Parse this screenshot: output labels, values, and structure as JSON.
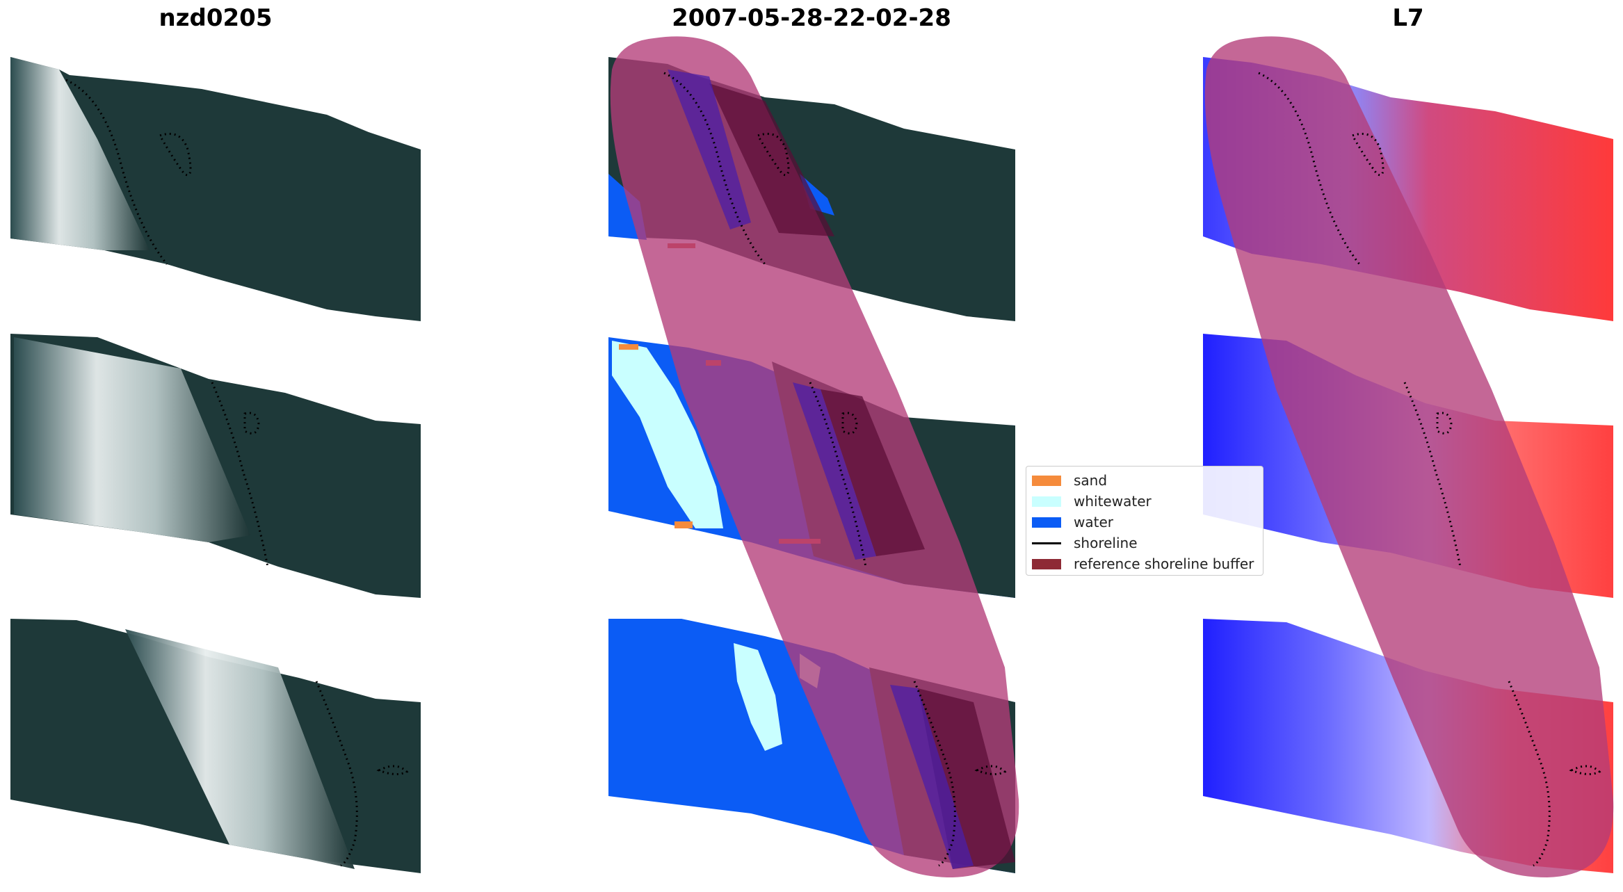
{
  "panels": [
    {
      "title": "nzd0205"
    },
    {
      "title": "2007-05-28-22-02-28"
    },
    {
      "title": "L7"
    }
  ],
  "legend": {
    "items": [
      {
        "label": "sand",
        "color": "#f58b3c",
        "kind": "patch"
      },
      {
        "label": "whitewater",
        "color": "#c9ffff",
        "kind": "patch"
      },
      {
        "label": "water",
        "color": "#0b5cf5",
        "kind": "patch"
      },
      {
        "label": "shoreline",
        "color": "#000000",
        "kind": "line"
      },
      {
        "label": "reference shoreline buffer",
        "color": "#8e2a35",
        "kind": "patch"
      }
    ]
  },
  "colors": {
    "rgb_land": "#1d3a3a",
    "rgb_surf": "#c9d8d8",
    "class_water": "#0b5cf5",
    "class_whitewater": "#c9ffff",
    "class_sand": "#f58b3c",
    "buffer": "#b43c78",
    "ndwi_land": "#ff3a3a",
    "ndwi_water": "#2a2aff"
  }
}
